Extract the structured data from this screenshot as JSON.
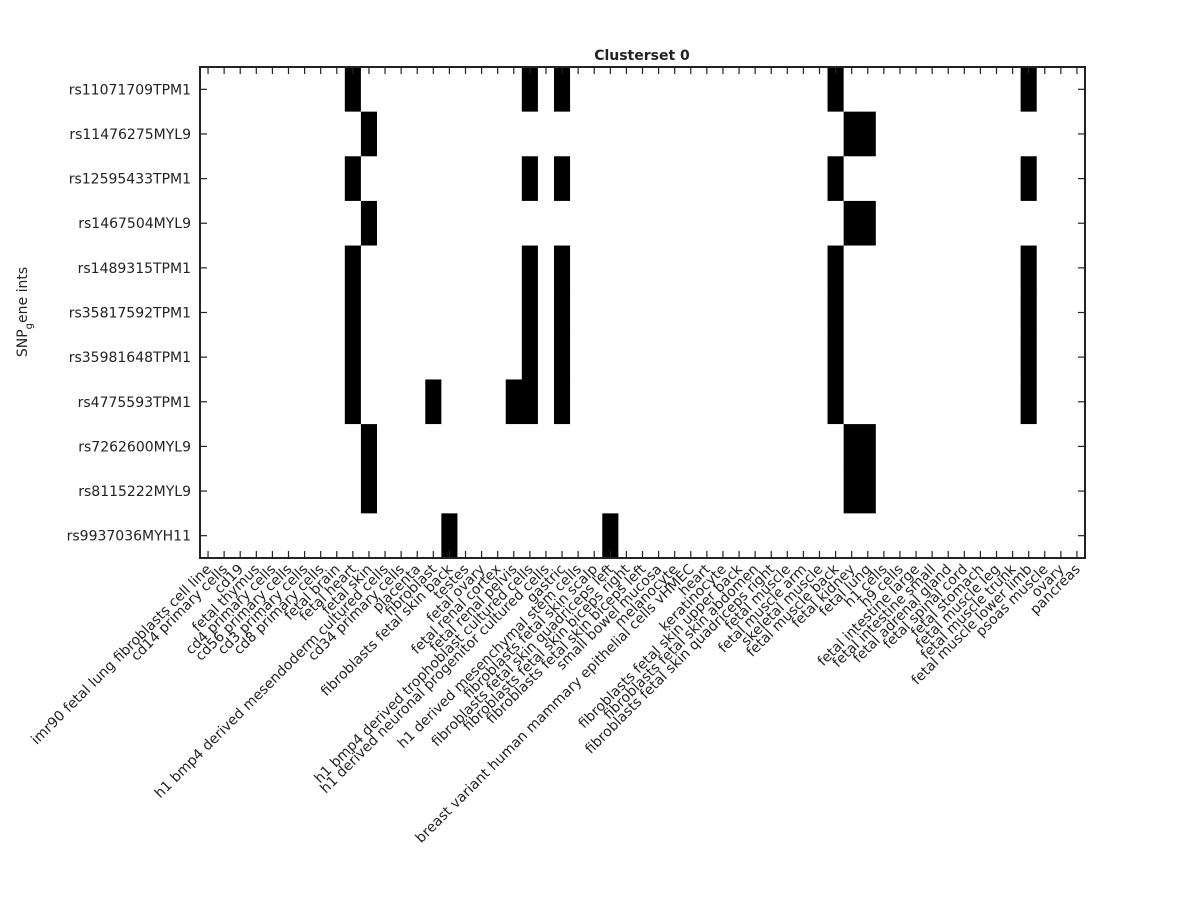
{
  "chart_data": {
    "type": "heatmap",
    "title": "Clusterset 0",
    "ylabel": [
      "SNP",
      "g",
      "ene ints"
    ],
    "colors": [
      "#ffffff",
      "#000000"
    ],
    "rows": [
      "rs11071709TPM1",
      "rs11476275MYL9",
      "rs12595433TPM1",
      "rs1467504MYL9",
      "rs1489315TPM1",
      "rs35817592TPM1",
      "rs35981648TPM1",
      "rs4775593TPM1",
      "rs7262600MYL9",
      "rs8115222MYL9",
      "rs9937036MYH11"
    ],
    "categories": [
      "imr90 fetal lung fibroblasts cell line",
      "cd14 primary cells",
      "cd19",
      "fetal thymus",
      "cd4 primary cells",
      "cd56 primary cells",
      "cd3 primary cells",
      "cd8 primary cells",
      "fetal brain",
      "fetal heart",
      "fetal skin",
      "h1 bmp4 derived mesendoderm cultured cells",
      "cd34 primary cells",
      "placenta",
      "fibroblast",
      "fibroblasts fetal skin back",
      "testes",
      "fetal ovary",
      "fetal renal cortex",
      "fetal renal pelvis",
      "h1 bmp4 derived trophoblast cultured cells",
      "h1 derived neuronal progenitor cultured cells",
      "gastric",
      "h1 derived mesenchymal stem cells",
      "fibroblasts fetal skin scalp",
      "fibroblasts fetal skin quadriceps left",
      "fibroblasts fetal skin biceps right",
      "fibroblasts fetal skin biceps left",
      "small bowel mucosa",
      "melanocyte",
      "breast variant human mammary epithelial cells vHMEC",
      "heart",
      "keratinocyte",
      "fibroblasts fetal skin upper back",
      "fibroblasts fetal skin abdomen",
      "fibroblasts fetal skin quadriceps right",
      "fetal muscle",
      "fetal muscle arm",
      "skeletal muscle",
      "fetal muscle back",
      "fetal kidney",
      "fetal lung",
      "h1 cells",
      "h9 cells",
      "fetal intestine large",
      "fetal intestine small",
      "fetal adrenal gland",
      "fetal spinal cord",
      "fetal stomach",
      "fetal muscle leg",
      "fetal muscle trunk",
      "fetal muscle lower limb",
      "psoas muscle",
      "ovary",
      "pancreas"
    ],
    "z": [
      [
        0,
        0,
        0,
        0,
        0,
        0,
        0,
        0,
        0,
        1,
        0,
        0,
        0,
        0,
        0,
        0,
        0,
        0,
        0,
        0,
        1,
        0,
        1,
        0,
        0,
        0,
        0,
        0,
        0,
        0,
        0,
        0,
        0,
        0,
        0,
        0,
        0,
        0,
        0,
        1,
        0,
        0,
        0,
        0,
        0,
        0,
        0,
        0,
        0,
        0,
        0,
        1,
        0,
        0,
        0
      ],
      [
        0,
        0,
        0,
        0,
        0,
        0,
        0,
        0,
        0,
        0,
        1,
        0,
        0,
        0,
        0,
        0,
        0,
        0,
        0,
        0,
        0,
        0,
        0,
        0,
        0,
        0,
        0,
        0,
        0,
        0,
        0,
        0,
        0,
        0,
        0,
        0,
        0,
        0,
        0,
        0,
        1,
        1,
        0,
        0,
        0,
        0,
        0,
        0,
        0,
        0,
        0,
        0,
        0,
        0,
        0
      ],
      [
        0,
        0,
        0,
        0,
        0,
        0,
        0,
        0,
        0,
        1,
        0,
        0,
        0,
        0,
        0,
        0,
        0,
        0,
        0,
        0,
        1,
        0,
        1,
        0,
        0,
        0,
        0,
        0,
        0,
        0,
        0,
        0,
        0,
        0,
        0,
        0,
        0,
        0,
        0,
        1,
        0,
        0,
        0,
        0,
        0,
        0,
        0,
        0,
        0,
        0,
        0,
        1,
        0,
        0,
        0
      ],
      [
        0,
        0,
        0,
        0,
        0,
        0,
        0,
        0,
        0,
        0,
        1,
        0,
        0,
        0,
        0,
        0,
        0,
        0,
        0,
        0,
        0,
        0,
        0,
        0,
        0,
        0,
        0,
        0,
        0,
        0,
        0,
        0,
        0,
        0,
        0,
        0,
        0,
        0,
        0,
        0,
        1,
        1,
        0,
        0,
        0,
        0,
        0,
        0,
        0,
        0,
        0,
        0,
        0,
        0,
        0
      ],
      [
        0,
        0,
        0,
        0,
        0,
        0,
        0,
        0,
        0,
        1,
        0,
        0,
        0,
        0,
        0,
        0,
        0,
        0,
        0,
        0,
        1,
        0,
        1,
        0,
        0,
        0,
        0,
        0,
        0,
        0,
        0,
        0,
        0,
        0,
        0,
        0,
        0,
        0,
        0,
        1,
        0,
        0,
        0,
        0,
        0,
        0,
        0,
        0,
        0,
        0,
        0,
        1,
        0,
        0,
        0
      ],
      [
        0,
        0,
        0,
        0,
        0,
        0,
        0,
        0,
        0,
        1,
        0,
        0,
        0,
        0,
        0,
        0,
        0,
        0,
        0,
        0,
        1,
        0,
        1,
        0,
        0,
        0,
        0,
        0,
        0,
        0,
        0,
        0,
        0,
        0,
        0,
        0,
        0,
        0,
        0,
        1,
        0,
        0,
        0,
        0,
        0,
        0,
        0,
        0,
        0,
        0,
        0,
        1,
        0,
        0,
        0
      ],
      [
        0,
        0,
        0,
        0,
        0,
        0,
        0,
        0,
        0,
        1,
        0,
        0,
        0,
        0,
        0,
        0,
        0,
        0,
        0,
        0,
        1,
        0,
        1,
        0,
        0,
        0,
        0,
        0,
        0,
        0,
        0,
        0,
        0,
        0,
        0,
        0,
        0,
        0,
        0,
        1,
        0,
        0,
        0,
        0,
        0,
        0,
        0,
        0,
        0,
        0,
        0,
        1,
        0,
        0,
        0
      ],
      [
        0,
        0,
        0,
        0,
        0,
        0,
        0,
        0,
        0,
        1,
        0,
        0,
        0,
        0,
        1,
        0,
        0,
        0,
        0,
        1,
        1,
        0,
        1,
        0,
        0,
        0,
        0,
        0,
        0,
        0,
        0,
        0,
        0,
        0,
        0,
        0,
        0,
        0,
        0,
        1,
        0,
        0,
        0,
        0,
        0,
        0,
        0,
        0,
        0,
        0,
        0,
        1,
        0,
        0,
        0
      ],
      [
        0,
        0,
        0,
        0,
        0,
        0,
        0,
        0,
        0,
        0,
        1,
        0,
        0,
        0,
        0,
        0,
        0,
        0,
        0,
        0,
        0,
        0,
        0,
        0,
        0,
        0,
        0,
        0,
        0,
        0,
        0,
        0,
        0,
        0,
        0,
        0,
        0,
        0,
        0,
        0,
        1,
        1,
        0,
        0,
        0,
        0,
        0,
        0,
        0,
        0,
        0,
        0,
        0,
        0,
        0
      ],
      [
        0,
        0,
        0,
        0,
        0,
        0,
        0,
        0,
        0,
        0,
        1,
        0,
        0,
        0,
        0,
        0,
        0,
        0,
        0,
        0,
        0,
        0,
        0,
        0,
        0,
        0,
        0,
        0,
        0,
        0,
        0,
        0,
        0,
        0,
        0,
        0,
        0,
        0,
        0,
        0,
        1,
        1,
        0,
        0,
        0,
        0,
        0,
        0,
        0,
        0,
        0,
        0,
        0,
        0,
        0
      ],
      [
        0,
        0,
        0,
        0,
        0,
        0,
        0,
        0,
        0,
        0,
        0,
        0,
        0,
        0,
        0,
        1,
        0,
        0,
        0,
        0,
        0,
        0,
        0,
        0,
        0,
        1,
        0,
        0,
        0,
        0,
        0,
        0,
        0,
        0,
        0,
        0,
        0,
        0,
        0,
        0,
        0,
        0,
        0,
        0,
        0,
        0,
        0,
        0,
        0,
        0,
        0,
        0,
        0,
        0,
        0
      ]
    ]
  }
}
